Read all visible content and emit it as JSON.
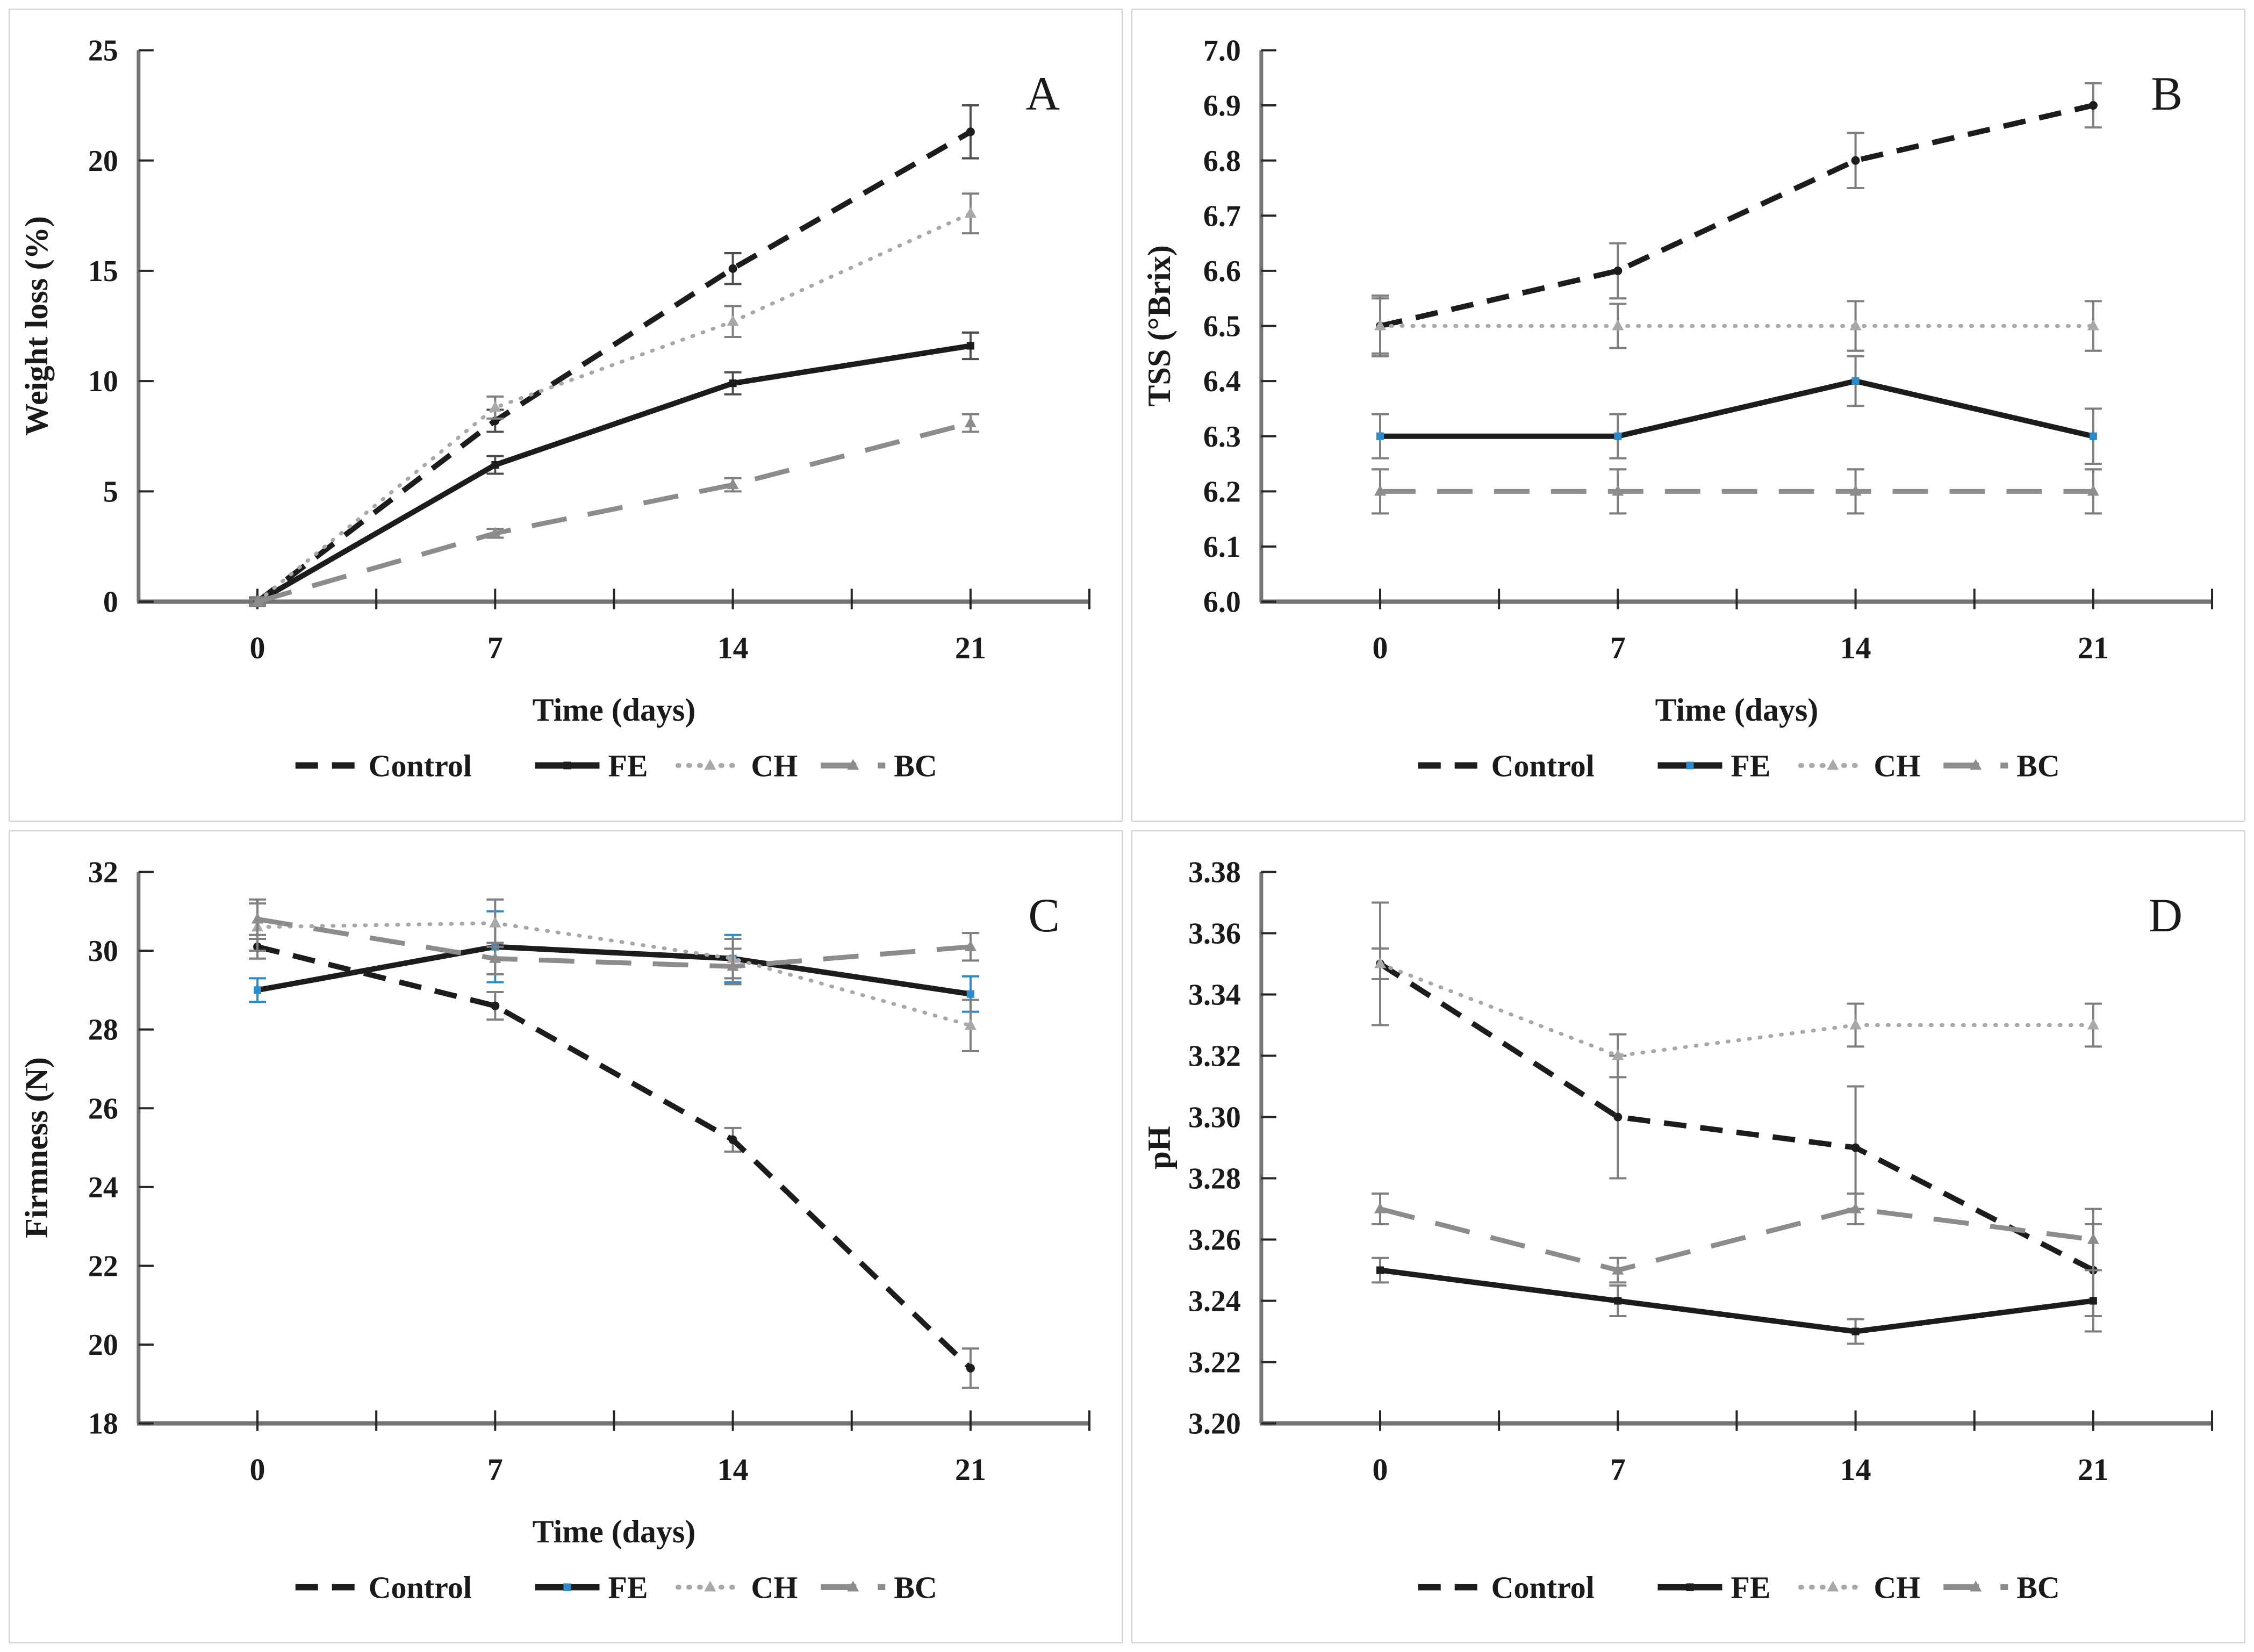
{
  "page": {
    "background": "#ffffff",
    "panel_border_color": "#cfcfcf"
  },
  "colors": {
    "black": "#1c1c1c",
    "gray_light": "#a8a8a8",
    "gray_medium": "#8c8c8c",
    "axis_gray": "#737373",
    "tick_dark": "#262626",
    "error_gray": "#7f7f7f",
    "error_dark": "#4d4d4d",
    "blue": "#2d8bc9",
    "text": "#1a1a1a"
  },
  "chart_data": [
    {
      "type": "line",
      "panel_label": "A",
      "ylabel": "Weight loss (%)",
      "xlabel": "Time (days)",
      "categories": [
        "0",
        "7",
        "14",
        "21"
      ],
      "ylim": [
        0,
        25
      ],
      "ytick_labels": [
        "0",
        "5",
        "10",
        "15",
        "20",
        "25"
      ],
      "grid": false,
      "legend_position": "bottom",
      "series": [
        {
          "name": "Control",
          "values": [
            0,
            8.2,
            15.1,
            21.3
          ],
          "errors": [
            0.2,
            0.5,
            0.7,
            1.2
          ],
          "style": "dashed",
          "color_key": "black",
          "marker": "dot",
          "marker_color_key": "black",
          "error_color_key": "error_dark"
        },
        {
          "name": "FE",
          "values": [
            0,
            6.2,
            9.9,
            11.6
          ],
          "errors": [
            0.1,
            0.4,
            0.5,
            0.6
          ],
          "style": "solid",
          "color_key": "black",
          "marker": "square",
          "marker_color_key": "black",
          "error_color_key": "error_dark"
        },
        {
          "name": "CH",
          "values": [
            0,
            8.8,
            12.7,
            17.6
          ],
          "errors": [
            0.2,
            0.5,
            0.7,
            0.9
          ],
          "style": "dotted",
          "color_key": "gray_light",
          "marker": "triangle",
          "marker_color_key": "gray_light",
          "error_color_key": "error_gray"
        },
        {
          "name": "BC",
          "values": [
            0,
            3.1,
            5.3,
            8.1
          ],
          "errors": [
            0.1,
            0.2,
            0.3,
            0.4
          ],
          "style": "longdash",
          "color_key": "gray_medium",
          "marker": "triangle",
          "marker_color_key": "gray_medium",
          "error_color_key": "error_gray"
        }
      ]
    },
    {
      "type": "line",
      "panel_label": "B",
      "ylabel": "TSS (°Brix)",
      "xlabel": "Time (days)",
      "categories": [
        "0",
        "7",
        "14",
        "21"
      ],
      "ylim": [
        6.0,
        7.0
      ],
      "ytick_labels": [
        "6.0",
        "6.1",
        "6.2",
        "6.3",
        "6.4",
        "6.5",
        "6.6",
        "6.7",
        "6.8",
        "6.9",
        "7.0"
      ],
      "grid": false,
      "legend_position": "bottom",
      "series": [
        {
          "name": "Control",
          "values": [
            6.5,
            6.6,
            6.8,
            6.9
          ],
          "errors": [
            0.05,
            0.05,
            0.05,
            0.04
          ],
          "style": "dashed",
          "color_key": "black",
          "marker": "dot",
          "marker_color_key": "black",
          "error_color_key": "error_gray"
        },
        {
          "name": "FE",
          "values": [
            6.3,
            6.3,
            6.4,
            6.3
          ],
          "errors": [
            0.04,
            0.04,
            0.045,
            0.05
          ],
          "style": "solid",
          "color_key": "black",
          "marker": "square",
          "marker_color_key": "blue",
          "error_color_key": "error_gray"
        },
        {
          "name": "CH",
          "values": [
            6.5,
            6.5,
            6.5,
            6.5
          ],
          "errors": [
            0.055,
            0.04,
            0.045,
            0.045
          ],
          "style": "dotted",
          "color_key": "gray_light",
          "marker": "triangle",
          "marker_color_key": "gray_light",
          "error_color_key": "error_gray"
        },
        {
          "name": "BC",
          "values": [
            6.2,
            6.2,
            6.2,
            6.2
          ],
          "errors": [
            0.04,
            0.04,
            0.04,
            0.04
          ],
          "style": "longdash",
          "color_key": "gray_medium",
          "marker": "triangle",
          "marker_color_key": "gray_medium",
          "error_color_key": "error_gray"
        }
      ]
    },
    {
      "type": "line",
      "panel_label": "C",
      "ylabel": "Firmness (N)",
      "xlabel": "Time (days)",
      "categories": [
        "0",
        "7",
        "14",
        "21"
      ],
      "ylim": [
        18,
        32
      ],
      "ytick_labels": [
        "18",
        "20",
        "22",
        "24",
        "26",
        "28",
        "30",
        "32"
      ],
      "grid": false,
      "legend_position": "bottom",
      "series": [
        {
          "name": "Control",
          "values": [
            30.1,
            28.6,
            25.2,
            19.4
          ],
          "errors": [
            0.3,
            0.35,
            0.3,
            0.5
          ],
          "style": "dashed",
          "color_key": "black",
          "marker": "dot",
          "marker_color_key": "black",
          "error_color_key": "error_gray"
        },
        {
          "name": "FE",
          "values": [
            29.0,
            30.1,
            29.8,
            28.9
          ],
          "errors": [
            0.3,
            0.9,
            0.6,
            0.45
          ],
          "style": "solid",
          "color_key": "black",
          "marker": "square",
          "marker_color_key": "blue",
          "error_color_key": "blue"
        },
        {
          "name": "CH",
          "values": [
            30.6,
            30.7,
            29.8,
            28.1
          ],
          "errors": [
            0.6,
            0.6,
            0.5,
            0.65
          ],
          "style": "dotted",
          "color_key": "gray_light",
          "marker": "triangle",
          "marker_color_key": "gray_light",
          "error_color_key": "error_gray"
        },
        {
          "name": "BC",
          "values": [
            30.8,
            29.8,
            29.6,
            30.1
          ],
          "errors": [
            0.5,
            0.4,
            0.45,
            0.35
          ],
          "style": "longdash",
          "color_key": "gray_medium",
          "marker": "triangle",
          "marker_color_key": "gray_medium",
          "error_color_key": "error_gray"
        }
      ]
    },
    {
      "type": "line",
      "panel_label": "D",
      "ylabel": "pH",
      "xlabel": "",
      "categories": [
        "0",
        "7",
        "14",
        "21"
      ],
      "ylim": [
        3.2,
        3.38
      ],
      "ytick_labels": [
        "3.20",
        "3.22",
        "3.24",
        "3.26",
        "3.28",
        "3.30",
        "3.32",
        "3.34",
        "3.36",
        "3.38"
      ],
      "grid": false,
      "legend_position": "bottom",
      "series": [
        {
          "name": "Control",
          "values": [
            3.35,
            3.3,
            3.29,
            3.25
          ],
          "errors": [
            0.02,
            0.02,
            0.02,
            0.015
          ],
          "style": "dashed",
          "color_key": "black",
          "marker": "dot",
          "marker_color_key": "black",
          "error_color_key": "error_gray"
        },
        {
          "name": "FE",
          "values": [
            3.25,
            3.24,
            3.23,
            3.24
          ],
          "errors": [
            0.004,
            0.005,
            0.004,
            0.01
          ],
          "style": "solid",
          "color_key": "black",
          "marker": "square",
          "marker_color_key": "black",
          "error_color_key": "error_gray"
        },
        {
          "name": "CH",
          "values": [
            3.35,
            3.32,
            3.33,
            3.33
          ],
          "errors": [
            0.005,
            0.007,
            0.007,
            0.007
          ],
          "style": "dotted",
          "color_key": "gray_light",
          "marker": "triangle",
          "marker_color_key": "gray_light",
          "error_color_key": "error_gray"
        },
        {
          "name": "BC",
          "values": [
            3.27,
            3.25,
            3.27,
            3.26
          ],
          "errors": [
            0.005,
            0.004,
            0.005,
            0.01
          ],
          "style": "longdash",
          "color_key": "gray_medium",
          "marker": "triangle",
          "marker_color_key": "gray_medium",
          "error_color_key": "error_gray"
        }
      ]
    }
  ]
}
